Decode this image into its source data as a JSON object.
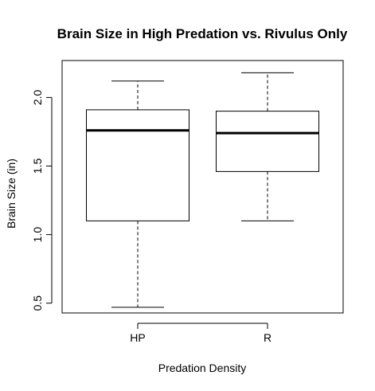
{
  "chart_data": {
    "type": "box",
    "title": "Brain Size in High Predation vs. Rivulus Only",
    "xlabel": "Predation Density",
    "ylabel": "Brain Size (in)",
    "categories": [
      "HP",
      "R"
    ],
    "boxes": [
      {
        "category": "HP",
        "min": 0.47,
        "q1": 1.1,
        "median": 1.76,
        "q3": 1.91,
        "max": 2.12
      },
      {
        "category": "R",
        "min": 1.1,
        "q1": 1.46,
        "median": 1.74,
        "q3": 1.9,
        "max": 2.18
      }
    ],
    "yticks": [
      0.5,
      1.0,
      1.5,
      2.0
    ],
    "ytick_labels": [
      "0.5",
      "1.0",
      "1.5",
      "2.0"
    ],
    "ylim": [
      0.4,
      2.24
    ],
    "grid": false,
    "legend": "none"
  }
}
